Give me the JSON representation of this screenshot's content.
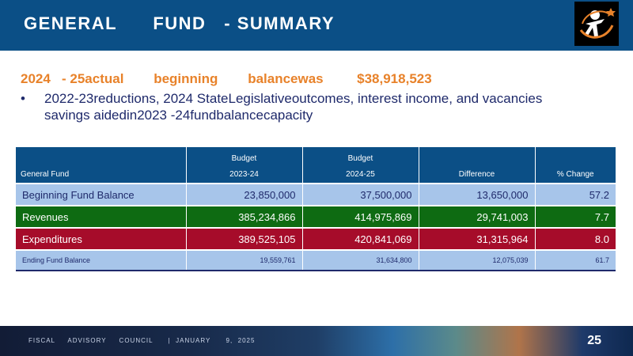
{
  "header": {
    "title": "GENERAL      FUND   - SUMMARY"
  },
  "subtitle": "2024   - 25actual        beginning        balancewas         $38,918,523",
  "bullet": {
    "marker": "•",
    "text": "2022-23reductions, 2024 StateLegislativeoutcomes, interest income, and vacancies savings aidedin2023 -24fundbalancecapacity"
  },
  "table": {
    "headers": {
      "fund_label": "General        Fund",
      "budget1_top": "Budget",
      "budget1_bottom": "2023-24",
      "budget2_top": "Budget",
      "budget2_bottom": "2024-25",
      "difference": "Difference",
      "pct_change": "%   Change"
    },
    "rows": [
      {
        "label": "Beginning  Fund Balance",
        "b1": "23,850,000",
        "b2": "37,500,000",
        "diff": "13,650,000",
        "pct": "57.2"
      },
      {
        "label": "Revenues",
        "b1": "385,234,866",
        "b2": "414,975,869",
        "diff": "29,741,003",
        "pct": "7.7"
      },
      {
        "label": "Expenditures",
        "b1": "389,525,105",
        "b2": "420,841,069",
        "diff": "31,315,964",
        "pct": "8.0"
      },
      {
        "label": "Ending        Fund        Balance",
        "b1": "19,559,761",
        "b2": "31,634,800",
        "diff": "12,075,039",
        "pct": "61.7"
      }
    ]
  },
  "footer": {
    "text": "FISCAL     ADVISORY     COUNCIL      |  JANUARY      9,  2025",
    "page": "25"
  },
  "colors": {
    "header_bg": "#0b4f86",
    "accent_orange": "#e8822a",
    "revenue_green": "#0e6b12",
    "expenditure_red": "#a60c2a",
    "light_blue": "#a7c5ea"
  }
}
